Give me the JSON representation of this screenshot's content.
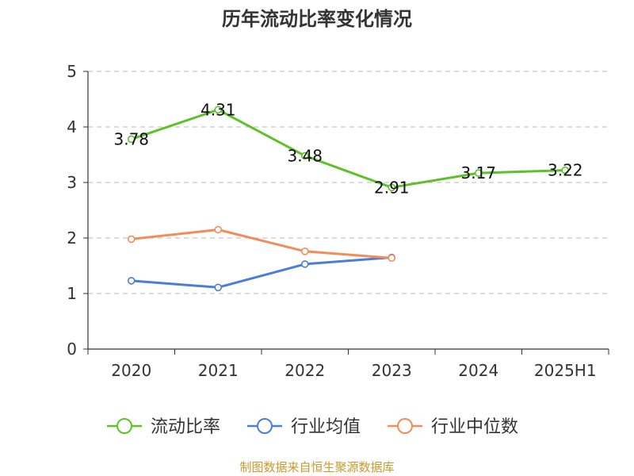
{
  "chart_data": {
    "type": "line",
    "title": "历年流动比率变化情况",
    "xlabel": "",
    "ylabel": "",
    "categories": [
      "2020",
      "2021",
      "2022",
      "2023",
      "2024",
      "2025H1"
    ],
    "ylim": [
      0,
      5
    ],
    "yticks": [
      "0",
      "1",
      "2",
      "3",
      "4",
      "5"
    ],
    "grid": true,
    "legend_position": "bottom",
    "series": [
      {
        "name": "流动比率",
        "color": "#5ec12a",
        "values": [
          3.78,
          4.31,
          3.48,
          2.91,
          3.17,
          3.22
        ],
        "labels": [
          "3.78",
          "4.31",
          "3.48",
          "2.91",
          "3.17",
          "3.22"
        ]
      },
      {
        "name": "行业均值",
        "color": "#4a7ed8",
        "values": [
          1.23,
          1.11,
          1.53,
          1.65,
          null,
          null
        ]
      },
      {
        "name": "行业中位数",
        "color": "#f28c5a",
        "values": [
          1.98,
          2.15,
          1.76,
          1.64,
          null,
          null
        ]
      }
    ]
  },
  "source": {
    "text": "制图数据来自恒生聚源数据库",
    "color": "#c79a2e"
  }
}
